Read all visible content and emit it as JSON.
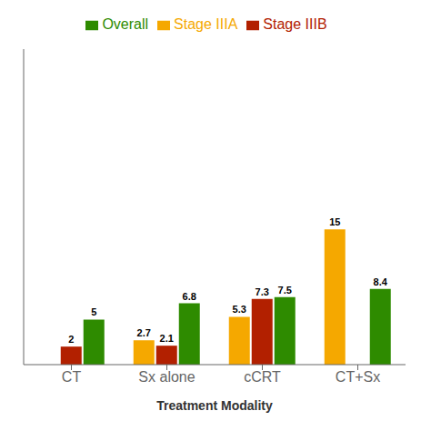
{
  "chart_data": {
    "type": "bar",
    "categories": [
      "CT",
      "Sx alone",
      "cCRT",
      "CT+Sx"
    ],
    "series": [
      {
        "name": "Stage IIIA",
        "color": "#F5A800",
        "values": [
          null,
          2.7,
          5.3,
          15
        ]
      },
      {
        "name": "Stage IIIB",
        "color": "#B22000",
        "values": [
          2,
          2.1,
          7.3,
          0
        ]
      },
      {
        "name": "Overall",
        "color": "#2E8B00",
        "values": [
          5,
          6.8,
          7.5,
          8.4
        ]
      }
    ],
    "xlabel": "Treatment  Modality",
    "ylim": [
      0,
      35
    ],
    "data_labels": true,
    "tick_labels": "x",
    "grid": false,
    "legend": "top"
  }
}
